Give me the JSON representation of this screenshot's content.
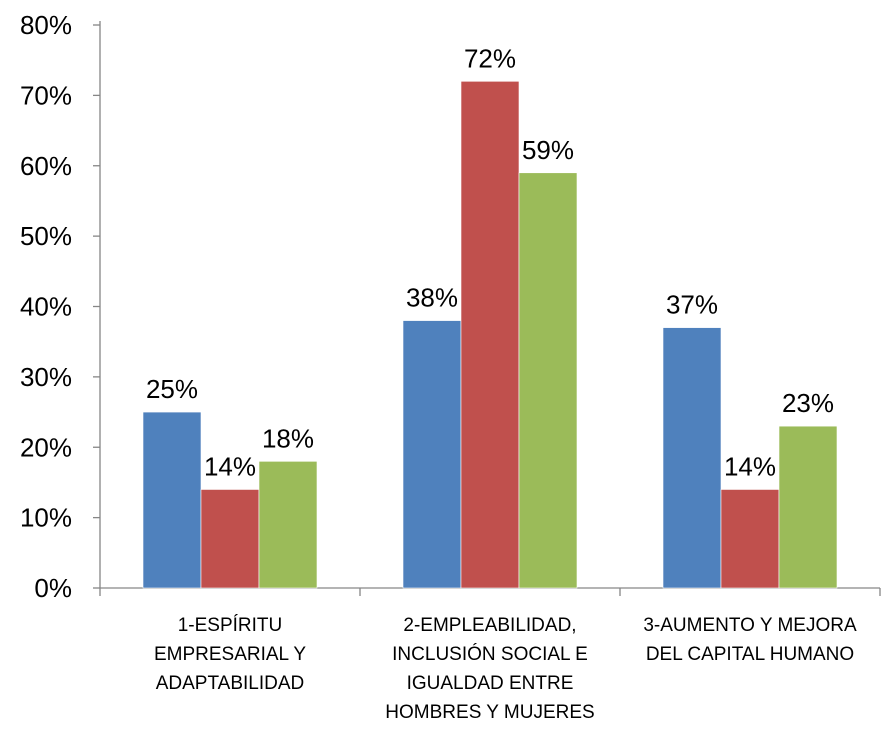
{
  "chart_data": {
    "type": "bar",
    "categories": [
      [
        "1-ESPÍRITU",
        "EMPRESARIAL Y",
        "ADAPTABILIDAD"
      ],
      [
        "2-EMPLEABILIDAD,",
        "INCLUSIÓN SOCIAL E",
        "IGUALDAD ENTRE",
        "HOMBRES Y MUJERES"
      ],
      [
        "3-AUMENTO Y MEJORA",
        "DEL CAPITAL HUMANO"
      ]
    ],
    "series": [
      {
        "color": "#4F81BD",
        "values": [
          25,
          38,
          37
        ],
        "labels": [
          "25%",
          "38%",
          "37%"
        ]
      },
      {
        "color": "#C0504D",
        "values": [
          14,
          72,
          14
        ],
        "labels": [
          "14%",
          "72%",
          "14%"
        ]
      },
      {
        "color": "#9BBB59",
        "values": [
          18,
          59,
          23
        ],
        "labels": [
          "18%",
          "59%",
          "23%"
        ]
      }
    ],
    "ylim": [
      0,
      80
    ],
    "yticks": [
      0,
      10,
      20,
      30,
      40,
      50,
      60,
      70,
      80
    ],
    "ytick_labels": [
      "0%",
      "10%",
      "20%",
      "30%",
      "40%",
      "50%",
      "60%",
      "70%",
      "80%"
    ],
    "grid": false,
    "legend": "none"
  }
}
